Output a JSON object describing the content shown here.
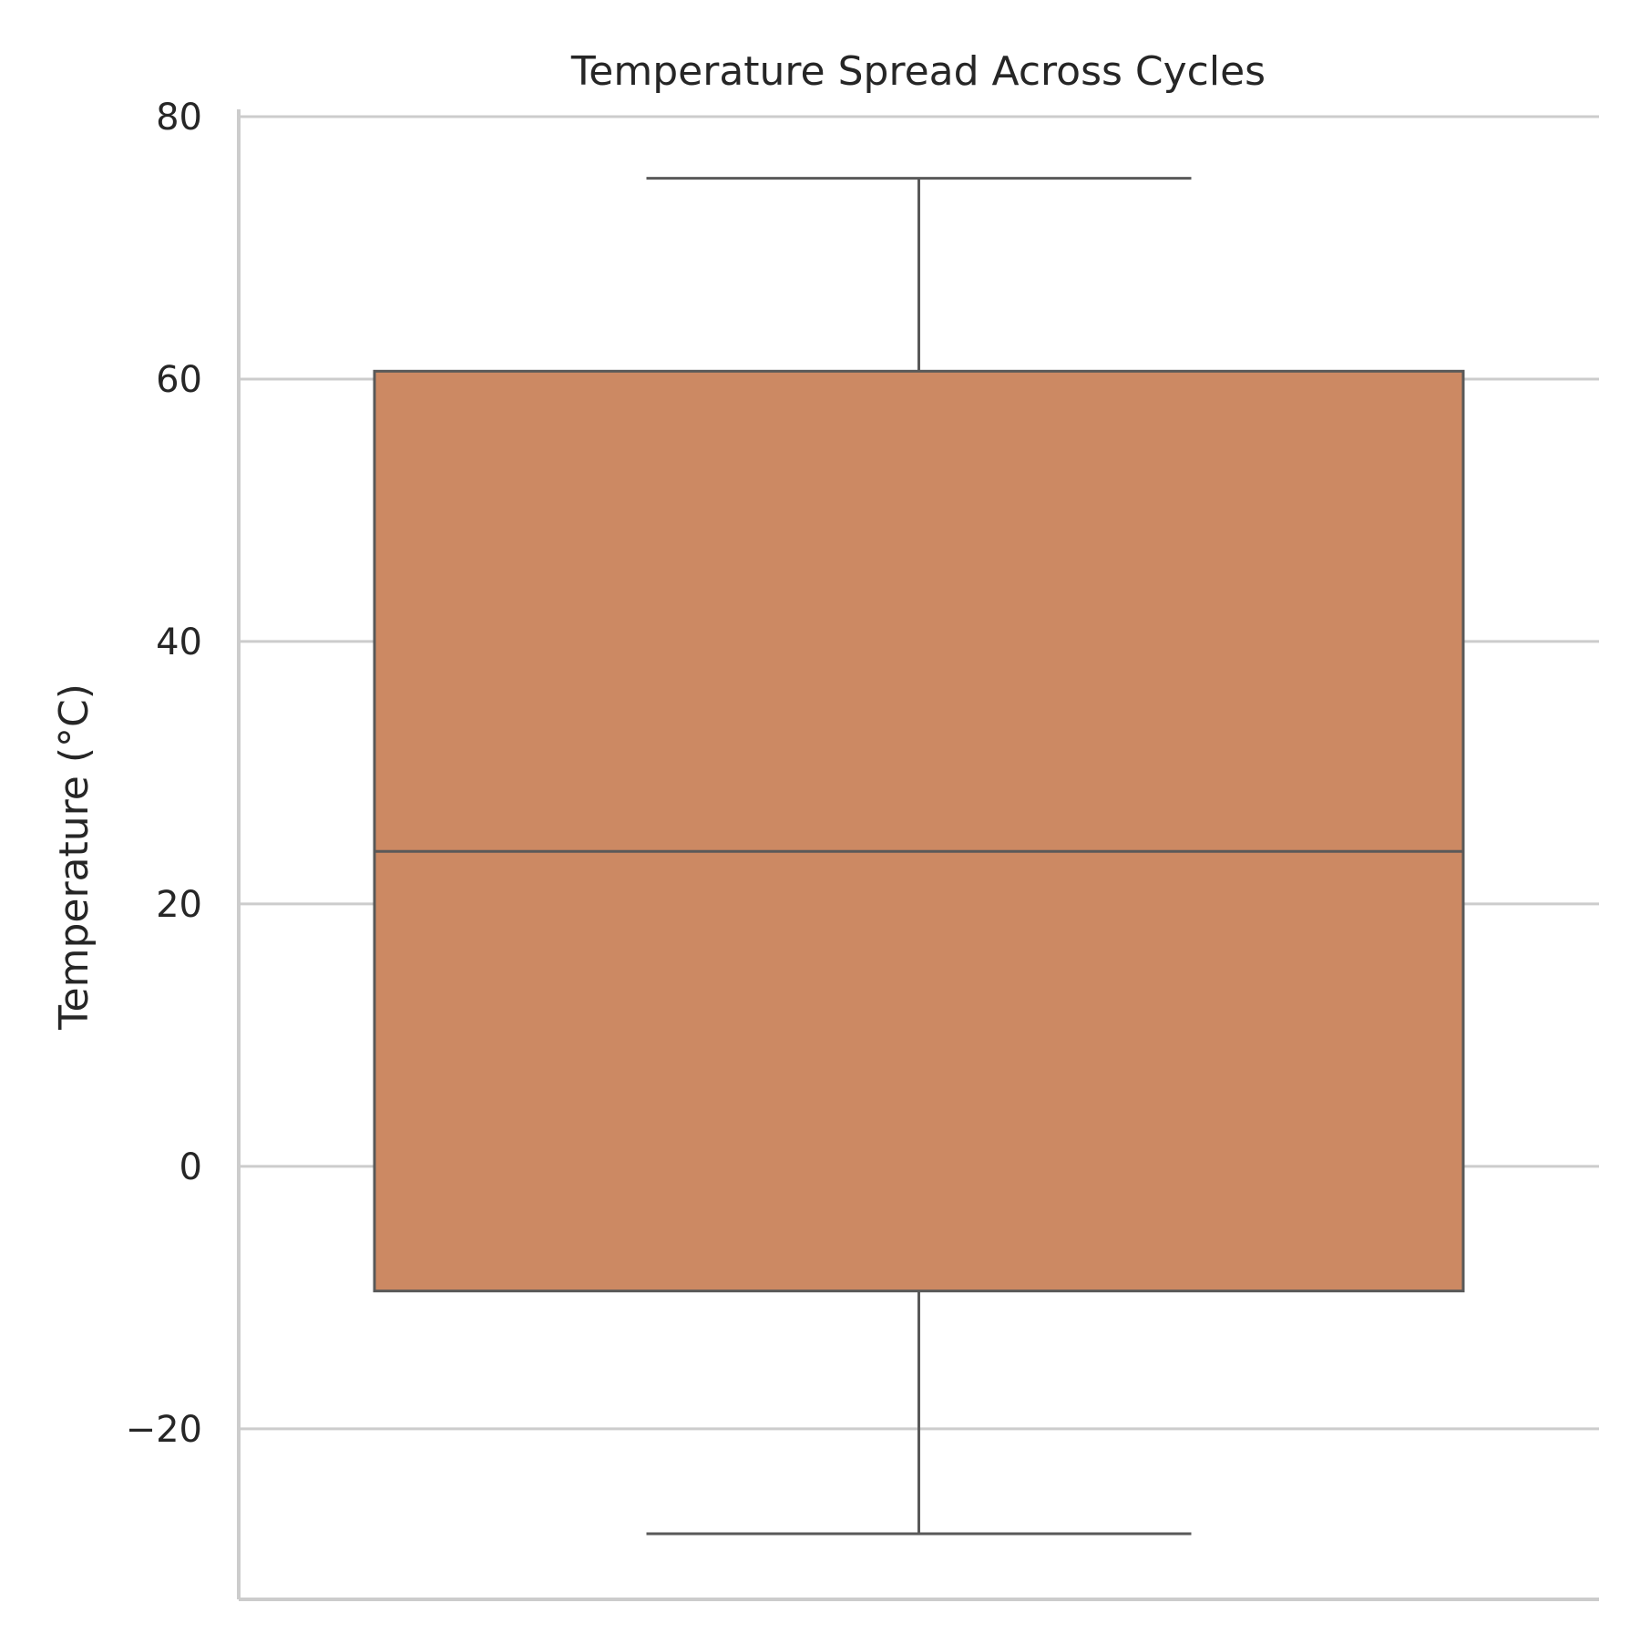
{
  "chart_data": {
    "type": "box",
    "title": "Temperature Spread Across Cycles",
    "xlabel": "",
    "ylabel": "Temperature (°C)",
    "ylim": [
      -33,
      80
    ],
    "yticks": [
      -20,
      0,
      20,
      40,
      60,
      80
    ],
    "ytick_labels": [
      "−20",
      "0",
      "20",
      "40",
      "60",
      "80"
    ],
    "grid": "horizontal",
    "series": [
      {
        "whisker_low": -28,
        "q1": -9.5,
        "median": 24,
        "q3": 60.6,
        "whisker_high": 75.3
      }
    ],
    "colors": {
      "box_fill": "#cc8963",
      "box_edge": "#595959",
      "grid": "#cccccc",
      "spine": "#cccccc",
      "text": "#262626"
    }
  }
}
